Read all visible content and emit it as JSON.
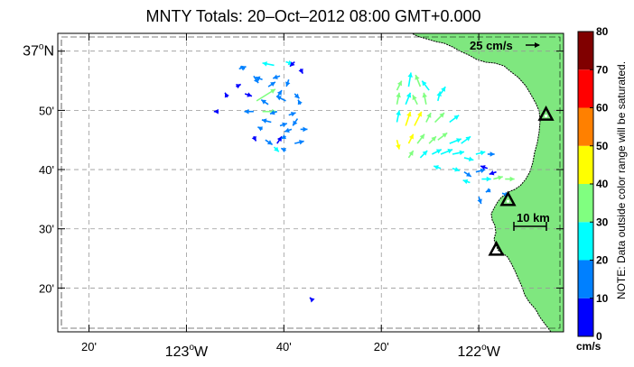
{
  "title": "MNTY Totals: 20–Oct–2012 08:00 GMT+0.000",
  "map": {
    "lat_labels": [
      {
        "value": "37°N",
        "lat": 37.0,
        "major": true
      },
      {
        "value": "50'",
        "lat": 36.8333,
        "major": false
      },
      {
        "value": "40'",
        "lat": 36.6667,
        "major": false
      },
      {
        "value": "30'",
        "lat": 36.5,
        "major": false
      },
      {
        "value": "20'",
        "lat": 36.3333,
        "major": false
      }
    ],
    "lon_labels": [
      {
        "value": "20'",
        "lon": -123.3333,
        "major": false
      },
      {
        "value": "123°W",
        "lon": -123.0,
        "major": true
      },
      {
        "value": "40'",
        "lon": -122.6667,
        "major": false
      },
      {
        "value": "20'",
        "lon": -122.3333,
        "major": false
      },
      {
        "value": "122°W",
        "lon": -122.0,
        "major": true
      }
    ],
    "extent": {
      "lon_min": -123.44,
      "lon_max": -121.71,
      "lat_max": 37.05,
      "lat_min": 36.21
    },
    "reference_vector_label": "25 cm/s",
    "scale_bar_label": "10 km",
    "colors": {
      "land": "#7fe77f",
      "coast": "#000000",
      "grid": "#999999",
      "radar_marker": "#000000"
    }
  },
  "colorbar": {
    "ticks": [
      "0",
      "10",
      "20",
      "30",
      "40",
      "50",
      "60",
      "70",
      "80"
    ],
    "units": "cm/s",
    "note": "NOTE: Data outside color range will be saturated.",
    "colors": [
      "#0000ff",
      "#0080ff",
      "#00ffff",
      "#80ff80",
      "#ffff00",
      "#ff8000",
      "#ff0000",
      "#800000"
    ]
  },
  "vectors": [
    {
      "lon": -122.82,
      "lat": 36.95,
      "u": 3,
      "v": 1,
      "speed": 18
    },
    {
      "lon": -122.8,
      "lat": 36.95,
      "u": -2,
      "v": 1,
      "speed": 16
    },
    {
      "lon": -122.77,
      "lat": 36.93,
      "u": 2,
      "v": -3,
      "speed": 15
    },
    {
      "lon": -122.74,
      "lat": 36.92,
      "u": -3,
      "v": 1,
      "speed": 14
    },
    {
      "lon": -122.83,
      "lat": 36.9,
      "u": 2,
      "v": 1,
      "speed": 6
    },
    {
      "lon": -122.7,
      "lat": 36.96,
      "u": -5,
      "v": 1,
      "speed": 23
    },
    {
      "lon": -122.66,
      "lat": 36.97,
      "u": 3,
      "v": -1,
      "speed": 20
    },
    {
      "lon": -122.63,
      "lat": 36.97,
      "u": -2,
      "v": -2,
      "speed": 8
    },
    {
      "lon": -122.61,
      "lat": 36.95,
      "u": 1,
      "v": -2,
      "speed": 6
    },
    {
      "lon": -122.68,
      "lat": 36.93,
      "u": -3,
      "v": -1,
      "speed": 18
    },
    {
      "lon": -122.65,
      "lat": 36.92,
      "u": -1,
      "v": -3,
      "speed": 12
    },
    {
      "lon": -122.72,
      "lat": 36.9,
      "u": 3,
      "v": 2,
      "speed": 16
    },
    {
      "lon": -122.8,
      "lat": 36.88,
      "u": 3,
      "v": -1,
      "speed": 7
    },
    {
      "lon": -122.76,
      "lat": 36.86,
      "u": 8,
      "v": 5,
      "speed": 33
    },
    {
      "lon": -122.72,
      "lat": 36.85,
      "u": -3,
      "v": 2,
      "speed": 14
    },
    {
      "lon": -122.69,
      "lat": 36.87,
      "u": 2,
      "v": 3,
      "speed": 10
    },
    {
      "lon": -122.66,
      "lat": 36.86,
      "u": -4,
      "v": 2,
      "speed": 15
    },
    {
      "lon": -122.63,
      "lat": 36.88,
      "u": 2,
      "v": -2,
      "speed": 14
    },
    {
      "lon": -122.61,
      "lat": 36.85,
      "u": -1,
      "v": 2,
      "speed": 10
    },
    {
      "lon": -122.86,
      "lat": 36.87,
      "u": -1,
      "v": 2,
      "speed": 6
    },
    {
      "lon": -122.77,
      "lat": 36.83,
      "u": -4,
      "v": 0,
      "speed": 13
    },
    {
      "lon": -122.74,
      "lat": 36.83,
      "u": 6,
      "v": 0,
      "speed": 30
    },
    {
      "lon": -122.69,
      "lat": 36.83,
      "u": -3,
      "v": -1,
      "speed": 10
    },
    {
      "lon": -122.65,
      "lat": 36.82,
      "u": 3,
      "v": 1,
      "speed": 14
    },
    {
      "lon": -122.62,
      "lat": 36.81,
      "u": -2,
      "v": -3,
      "speed": 16
    },
    {
      "lon": -122.89,
      "lat": 36.83,
      "u": -2,
      "v": 0,
      "speed": 5
    },
    {
      "lon": -122.71,
      "lat": 36.8,
      "u": -4,
      "v": 1,
      "speed": 15
    },
    {
      "lon": -122.68,
      "lat": 36.79,
      "u": 3,
      "v": 1,
      "speed": 10
    },
    {
      "lon": -122.74,
      "lat": 36.78,
      "u": -2,
      "v": 1,
      "speed": 12
    },
    {
      "lon": -122.64,
      "lat": 36.78,
      "u": -3,
      "v": -1,
      "speed": 11
    },
    {
      "lon": -122.61,
      "lat": 36.78,
      "u": 3,
      "v": 0,
      "speed": 16
    },
    {
      "lon": -122.77,
      "lat": 36.76,
      "u": 1,
      "v": -2,
      "speed": 7
    },
    {
      "lon": -122.73,
      "lat": 36.75,
      "u": 3,
      "v": -2,
      "speed": 13
    },
    {
      "lon": -122.69,
      "lat": 36.74,
      "u": 2,
      "v": 3,
      "speed": 8
    },
    {
      "lon": -122.66,
      "lat": 36.76,
      "u": -2,
      "v": -1,
      "speed": 15
    },
    {
      "lon": -122.63,
      "lat": 36.74,
      "u": 4,
      "v": 1,
      "speed": 17
    },
    {
      "lon": -122.66,
      "lat": 36.72,
      "u": -2,
      "v": 1,
      "speed": 19
    },
    {
      "lon": -122.7,
      "lat": 36.73,
      "u": 2,
      "v": -2,
      "speed": 20
    },
    {
      "lon": -122.57,
      "lat": 36.3,
      "u": -1,
      "v": 1,
      "speed": 5
    },
    {
      "lon": -122.28,
      "lat": 36.89,
      "u": 2,
      "v": 4,
      "speed": 35
    },
    {
      "lon": -122.24,
      "lat": 36.9,
      "u": 1,
      "v": 6,
      "speed": 28
    },
    {
      "lon": -122.2,
      "lat": 36.9,
      "u": -2,
      "v": 5,
      "speed": 30
    },
    {
      "lon": -122.17,
      "lat": 36.89,
      "u": -3,
      "v": 4,
      "speed": 22
    },
    {
      "lon": -122.13,
      "lat": 36.88,
      "u": 2,
      "v": 3,
      "speed": 20
    },
    {
      "lon": -122.28,
      "lat": 36.85,
      "u": 1,
      "v": 5,
      "speed": 32
    },
    {
      "lon": -122.25,
      "lat": 36.85,
      "u": 2,
      "v": 5,
      "speed": 24
    },
    {
      "lon": -122.21,
      "lat": 36.85,
      "u": -2,
      "v": 4,
      "speed": 35
    },
    {
      "lon": -122.18,
      "lat": 36.85,
      "u": -1,
      "v": 5,
      "speed": 30
    },
    {
      "lon": -122.14,
      "lat": 36.86,
      "u": 1,
      "v": 4,
      "speed": 28
    },
    {
      "lon": -122.28,
      "lat": 36.8,
      "u": 1,
      "v": 5,
      "speed": 27
    },
    {
      "lon": -122.25,
      "lat": 36.79,
      "u": 2,
      "v": 6,
      "speed": 42
    },
    {
      "lon": -122.22,
      "lat": 36.79,
      "u": 3,
      "v": 6,
      "speed": 44
    },
    {
      "lon": -122.18,
      "lat": 36.8,
      "u": 2,
      "v": 4,
      "speed": 38
    },
    {
      "lon": -122.15,
      "lat": 36.8,
      "u": 4,
      "v": 4,
      "speed": 32
    },
    {
      "lon": -122.1,
      "lat": 36.8,
      "u": 4,
      "v": 3,
      "speed": 29
    },
    {
      "lon": -122.28,
      "lat": 36.75,
      "u": 1,
      "v": -4,
      "speed": 43
    },
    {
      "lon": -122.24,
      "lat": 36.74,
      "u": 2,
      "v": 4,
      "speed": 40
    },
    {
      "lon": -122.21,
      "lat": 36.74,
      "u": 3,
      "v": 4,
      "speed": 37
    },
    {
      "lon": -122.17,
      "lat": 36.74,
      "u": 3,
      "v": 3,
      "speed": 34
    },
    {
      "lon": -122.14,
      "lat": 36.75,
      "u": 4,
      "v": 3,
      "speed": 30
    },
    {
      "lon": -122.1,
      "lat": 36.74,
      "u": 5,
      "v": 2,
      "speed": 27
    },
    {
      "lon": -122.06,
      "lat": 36.74,
      "u": 4,
      "v": 3,
      "speed": 28
    },
    {
      "lon": -122.24,
      "lat": 36.7,
      "u": 2,
      "v": 3,
      "speed": 38
    },
    {
      "lon": -122.2,
      "lat": 36.7,
      "u": 3,
      "v": 3,
      "speed": 25
    },
    {
      "lon": -122.16,
      "lat": 36.71,
      "u": 4,
      "v": 2,
      "speed": 24
    },
    {
      "lon": -122.13,
      "lat": 36.71,
      "u": 5,
      "v": 2,
      "speed": 26
    },
    {
      "lon": -122.09,
      "lat": 36.71,
      "u": 5,
      "v": 1,
      "speed": 23
    },
    {
      "lon": -122.05,
      "lat": 36.7,
      "u": 4,
      "v": -1,
      "speed": 22
    },
    {
      "lon": -122.01,
      "lat": 36.71,
      "u": 4,
      "v": 1,
      "speed": 20
    },
    {
      "lon": -121.97,
      "lat": 36.71,
      "u": 3,
      "v": 0,
      "speed": 19
    },
    {
      "lon": -122.13,
      "lat": 36.67,
      "u": -3,
      "v": 1,
      "speed": 24
    },
    {
      "lon": -122.09,
      "lat": 36.67,
      "u": 3,
      "v": -1,
      "speed": 22
    },
    {
      "lon": -122.05,
      "lat": 36.66,
      "u": 3,
      "v": -2,
      "speed": 18
    },
    {
      "lon": -122.01,
      "lat": 36.66,
      "u": 4,
      "v": 1,
      "speed": 12
    },
    {
      "lon": -121.97,
      "lat": 36.67,
      "u": -3,
      "v": 1,
      "speed": 8
    },
    {
      "lon": -121.94,
      "lat": 36.66,
      "u": -3,
      "v": -1,
      "speed": 6
    },
    {
      "lon": -122.03,
      "lat": 36.63,
      "u": -3,
      "v": 1,
      "speed": 22
    },
    {
      "lon": -121.99,
      "lat": 36.64,
      "u": 4,
      "v": 0,
      "speed": 26
    },
    {
      "lon": -121.95,
      "lat": 36.64,
      "u": 4,
      "v": 1,
      "speed": 32
    },
    {
      "lon": -121.91,
      "lat": 36.64,
      "u": 4,
      "v": 0,
      "speed": 30
    },
    {
      "lon": -121.96,
      "lat": 36.61,
      "u": -2,
      "v": -1,
      "speed": 14
    },
    {
      "lon": -121.92,
      "lat": 36.6,
      "u": 3,
      "v": -1,
      "speed": 11
    },
    {
      "lon": -122.0,
      "lat": 36.59,
      "u": 1,
      "v": -3,
      "speed": 18
    }
  ],
  "radar_sites": [
    {
      "lon": -121.77,
      "lat": 36.82
    },
    {
      "lon": -121.9,
      "lat": 36.58
    },
    {
      "lon": -121.94,
      "lat": 36.44
    }
  ]
}
